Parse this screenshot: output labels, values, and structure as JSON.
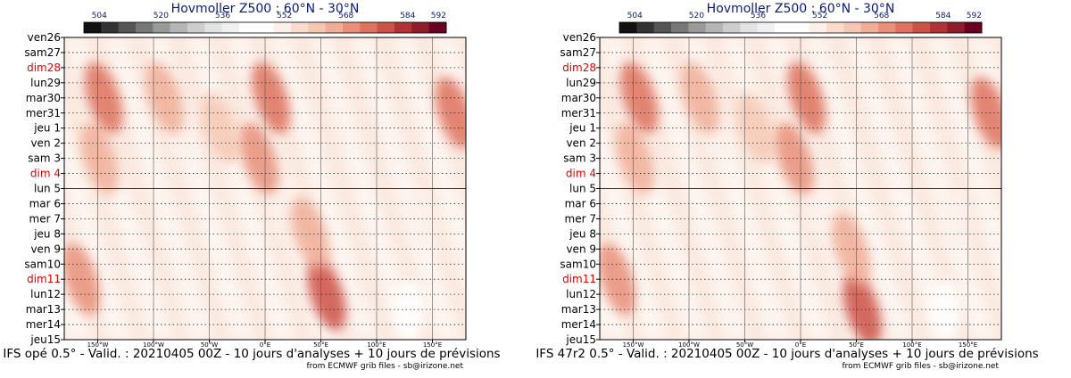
{
  "chart_data": [
    {
      "type": "heatmap",
      "title": "Hovmoller Z500 : 60°N - 30°N",
      "subtitle": "IFS opé 0.5° - Valid. : 20210405 00Z - 10 jours d'analyses + 10 jours de prévisions",
      "credit": "from ECMWF grib files - sb@irizone.net",
      "colorbar": {
        "ticks": [
          "504",
          "520",
          "536",
          "552",
          "568",
          "584",
          "592"
        ],
        "tick_values": [
          504,
          520,
          536,
          552,
          568,
          584,
          592
        ],
        "range": [
          500,
          594
        ],
        "colors": [
          "#111111",
          "#333333",
          "#555555",
          "#777777",
          "#999999",
          "#b5b5b5",
          "#cdcdcd",
          "#e2e2e2",
          "#f0f0f0",
          "#ffffff",
          "#ffffff",
          "#fdf0ea",
          "#fadccf",
          "#f6c7b3",
          "#f0ae98",
          "#e8907a",
          "#de725e",
          "#cc5147",
          "#b13335",
          "#8f1c2a",
          "#680022"
        ]
      },
      "x_ticks": [
        "150°W",
        "100°W",
        "50°W",
        "0°E",
        "50°E",
        "100°E",
        "150°E"
      ],
      "x_values": [
        -150,
        -100,
        -50,
        0,
        50,
        100,
        150
      ],
      "xlim": [
        -180,
        180
      ],
      "y_labels": [
        "ven26",
        "sam27",
        "dim28",
        "lun29",
        "mar30",
        "mer31",
        "jeu 1",
        "ven 2",
        "sam 3",
        "dim 4",
        "lun 5",
        "mar 6",
        "mer 7",
        "jeu 8",
        "ven 9",
        "sam10",
        "dim11",
        "lun12",
        "mar13",
        "mer14",
        "jeu15"
      ],
      "y_weekend": [
        false,
        false,
        true,
        false,
        false,
        false,
        false,
        false,
        false,
        true,
        false,
        false,
        false,
        false,
        false,
        false,
        true,
        false,
        false,
        false,
        false
      ],
      "analysis_forecast_boundary": "lun 5",
      "ridge_anomalies": [
        {
          "lon": -165,
          "day": 16,
          "value": 570
        },
        {
          "lon": -148,
          "day": 8,
          "value": 566
        },
        {
          "lon": -145,
          "day": 4,
          "value": 572
        },
        {
          "lon": -90,
          "day": 4,
          "value": 566
        },
        {
          "lon": -40,
          "day": 6,
          "value": 562
        },
        {
          "lon": 5,
          "day": 4,
          "value": 574
        },
        {
          "lon": -5,
          "day": 8,
          "value": 568
        },
        {
          "lon": 55,
          "day": 17,
          "value": 580
        },
        {
          "lon": 40,
          "day": 13,
          "value": 566
        },
        {
          "lon": 170,
          "day": 5,
          "value": 576
        }
      ],
      "trough_anomalies": [
        {
          "lon": 130,
          "day": 18,
          "value": 546
        },
        {
          "lon": 15,
          "day": 11,
          "value": 552
        },
        {
          "lon": 140,
          "day": 12,
          "value": 550
        },
        {
          "lon": -75,
          "day": 6,
          "value": 552
        }
      ]
    },
    {
      "type": "heatmap",
      "title": "Hovmoller Z500 : 60°N - 30°N",
      "subtitle": "IFS 47r2 0.5° - Valid. : 20210405 00Z - 10 jours d'analyses + 10 jours de prévisions",
      "credit": "from ECMWF grib files - sb@irizone.net",
      "colorbar": {
        "ticks": [
          "504",
          "520",
          "536",
          "552",
          "568",
          "584",
          "592"
        ],
        "tick_values": [
          504,
          520,
          536,
          552,
          568,
          584,
          592
        ],
        "range": [
          500,
          594
        ],
        "colors": [
          "#111111",
          "#333333",
          "#555555",
          "#777777",
          "#999999",
          "#b5b5b5",
          "#cdcdcd",
          "#e2e2e2",
          "#f0f0f0",
          "#ffffff",
          "#ffffff",
          "#fdf0ea",
          "#fadccf",
          "#f6c7b3",
          "#f0ae98",
          "#e8907a",
          "#de725e",
          "#cc5147",
          "#b13335",
          "#8f1c2a",
          "#680022"
        ]
      },
      "x_ticks": [
        "150°W",
        "100°W",
        "50°W",
        "0°E",
        "50°E",
        "100°E",
        "150°E"
      ],
      "x_values": [
        -150,
        -100,
        -50,
        0,
        50,
        100,
        150
      ],
      "xlim": [
        -180,
        180
      ],
      "y_labels": [
        "ven26",
        "sam27",
        "dim28",
        "lun29",
        "mar30",
        "mer31",
        "jeu 1",
        "ven 2",
        "sam 3",
        "dim 4",
        "lun 5",
        "mar 6",
        "mer 7",
        "jeu 8",
        "ven 9",
        "sam10",
        "dim11",
        "lun12",
        "mar13",
        "mer14",
        "jeu15"
      ],
      "y_weekend": [
        false,
        false,
        true,
        false,
        false,
        false,
        false,
        false,
        false,
        true,
        false,
        false,
        false,
        false,
        false,
        false,
        true,
        false,
        false,
        false,
        false
      ],
      "analysis_forecast_boundary": "lun 5",
      "ridge_anomalies": [
        {
          "lon": -165,
          "day": 16,
          "value": 570
        },
        {
          "lon": -148,
          "day": 8,
          "value": 566
        },
        {
          "lon": -145,
          "day": 4,
          "value": 572
        },
        {
          "lon": -90,
          "day": 4,
          "value": 566
        },
        {
          "lon": -40,
          "day": 6,
          "value": 562
        },
        {
          "lon": 5,
          "day": 4,
          "value": 574
        },
        {
          "lon": -5,
          "day": 8,
          "value": 568
        },
        {
          "lon": 55,
          "day": 18,
          "value": 580
        },
        {
          "lon": 45,
          "day": 14,
          "value": 566
        },
        {
          "lon": 170,
          "day": 5,
          "value": 576
        }
      ],
      "trough_anomalies": [
        {
          "lon": 130,
          "day": 18,
          "value": 546
        },
        {
          "lon": 15,
          "day": 11,
          "value": 552
        },
        {
          "lon": 140,
          "day": 12,
          "value": 550
        },
        {
          "lon": -75,
          "day": 6,
          "value": 552
        }
      ]
    }
  ]
}
